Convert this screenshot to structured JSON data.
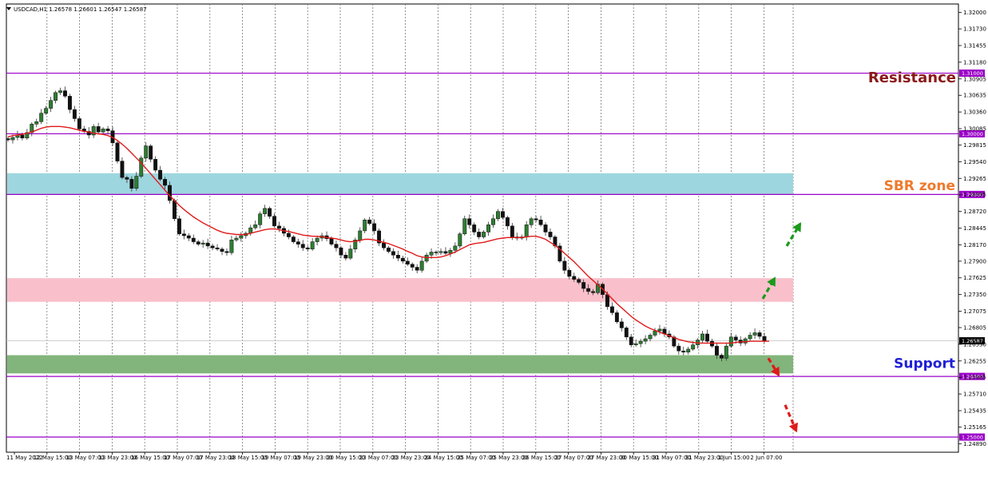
{
  "header": {
    "symbol_text": "USDCAD,H1  1.26578 1.26601 1.26547 1.26587"
  },
  "chart_data": {
    "type": "candlestick",
    "symbol": "USDCAD",
    "timeframe": "H1",
    "ohlc_header": {
      "open": 1.26578,
      "high": 1.26601,
      "low": 1.26547,
      "close": 1.26587
    },
    "current_price": "1.26587",
    "ylim": [
      1.2475,
      1.3214
    ],
    "y_ticks": [
      "1.32000",
      "1.31730",
      "1.31455",
      "1.31180",
      "1.30905",
      "1.30635",
      "1.30360",
      "1.30085",
      "1.29815",
      "1.29540",
      "1.29265",
      "1.28995",
      "1.28720",
      "1.28445",
      "1.28170",
      "1.27900",
      "1.27625",
      "1.27350",
      "1.27075",
      "1.26805",
      "1.26530",
      "1.26255",
      "1.25985",
      "1.25710",
      "1.25435",
      "1.25165",
      "1.24890"
    ],
    "x_ticks": [
      "11 May 2022",
      "12 May 15:00",
      "13 May 07:00",
      "13 May 23:00",
      "16 May 15:00",
      "17 May 07:00",
      "17 May 23:00",
      "18 May 15:00",
      "19 May 07:00",
      "19 May 23:00",
      "20 May 15:00",
      "23 May 07:00",
      "23 May 23:00",
      "24 May 15:00",
      "25 May 07:00",
      "25 May 23:00",
      "26 May 15:00",
      "27 May 07:00",
      "27 May 23:00",
      "30 May 15:00",
      "31 May 07:00",
      "31 May 23:00",
      "1 Jun 15:00",
      "2 Jun 07:00"
    ],
    "levels": [
      {
        "price": 1.31,
        "label": "1.31000",
        "color": "#9b00c8"
      },
      {
        "price": 1.3,
        "label": "1.30000",
        "color": "#9b00c8"
      },
      {
        "price": 1.29,
        "label": "1.29000",
        "color": "#9b00c8"
      },
      {
        "price": 1.26,
        "label": "1.26000",
        "color": "#9b00c8"
      },
      {
        "price": 1.25,
        "label": "1.25000",
        "color": "#9b00c8"
      }
    ],
    "zones": [
      {
        "name": "SBR zone band",
        "from": 1.29,
        "to": 1.2935,
        "color": "#9ed6df"
      },
      {
        "name": "pink band",
        "from": 1.2723,
        "to": 1.2762,
        "color": "#f9c0cb"
      },
      {
        "name": "support band",
        "from": 1.2605,
        "to": 1.2635,
        "color": "#82b57c"
      }
    ],
    "annotations": [
      {
        "text": "Resistance",
        "price": 1.3093,
        "color": "#8b1a1a"
      },
      {
        "text": "SBR zone",
        "price": 1.2915,
        "color": "#ee7a2c"
      },
      {
        "text": "Support",
        "price": 1.2622,
        "color": "#1f1fd6"
      }
    ],
    "series": [
      {
        "name": "",
        "kind": "close",
        "color": "#333333",
        "values": [
          1.299,
          1.2994,
          1.2998,
          1.2993,
          1.3002,
          1.3016,
          1.302,
          1.3034,
          1.3042,
          1.3055,
          1.3068,
          1.3071,
          1.3062,
          1.304,
          1.3025,
          1.3008,
          1.3004,
          1.2998,
          1.3012,
          1.3003,
          1.3008,
          1.3005,
          1.2985,
          1.2955,
          1.2928,
          1.2925,
          1.291,
          1.293,
          1.296,
          1.298,
          1.2958,
          1.294,
          1.2925,
          1.2915,
          1.289,
          1.286,
          1.2835,
          1.2832,
          1.2828,
          1.2822,
          1.2818,
          1.282,
          1.2815,
          1.2812,
          1.281,
          1.2806,
          1.2804,
          1.2825,
          1.2828,
          1.2832,
          1.2836,
          1.2845,
          1.285,
          1.2868,
          1.2877,
          1.2864,
          1.2848,
          1.2844,
          1.2836,
          1.283,
          1.2822,
          1.2818,
          1.2812,
          1.281,
          1.2822,
          1.2828,
          1.2832,
          1.2827,
          1.2818,
          1.2812,
          1.28,
          1.2795,
          1.281,
          1.2825,
          1.284,
          1.2858,
          1.2852,
          1.284,
          1.282,
          1.2812,
          1.2806,
          1.28,
          1.2795,
          1.279,
          1.2785,
          1.278,
          1.2775,
          1.279,
          1.28,
          1.2805,
          1.2804,
          1.2806,
          1.2803,
          1.2808,
          1.2815,
          1.2835,
          1.286,
          1.285,
          1.2838,
          1.283,
          1.2838,
          1.285,
          1.286,
          1.2872,
          1.2862,
          1.2848,
          1.283,
          1.2828,
          1.283,
          1.285,
          1.286,
          1.2858,
          1.285,
          1.2838,
          1.283,
          1.2815,
          1.279,
          1.2775,
          1.2765,
          1.276,
          1.2755,
          1.2745,
          1.274,
          1.2738,
          1.2752,
          1.2735,
          1.2715,
          1.2705,
          1.269,
          1.268,
          1.2665,
          1.2652,
          1.2654,
          1.2658,
          1.2662,
          1.2668,
          1.2675,
          1.2678,
          1.267,
          1.2665,
          1.265,
          1.2642,
          1.264,
          1.2645,
          1.2652,
          1.266,
          1.267,
          1.2658,
          1.265,
          1.2635,
          1.263,
          1.265,
          1.2665,
          1.266,
          1.2655,
          1.2662,
          1.2668,
          1.2672,
          1.2666,
          1.2659
        ]
      },
      {
        "name": "",
        "kind": "moving_average",
        "color": "#e01a1a",
        "values": [
          1.2995,
          1.2997,
          1.2998,
          1.2999,
          1.3001,
          1.3003,
          1.3006,
          1.3009,
          1.3011,
          1.3012,
          1.3012,
          1.3012,
          1.3011,
          1.301,
          1.3008,
          1.3006,
          1.3004,
          1.3003,
          1.3001,
          1.3,
          1.2999,
          1.2997,
          1.2994,
          1.2989,
          1.2983,
          1.2976,
          1.2968,
          1.296,
          1.2952,
          1.2943,
          1.2934,
          1.2925,
          1.2916,
          1.2907,
          1.2898,
          1.289,
          1.2882,
          1.2875,
          1.2869,
          1.2863,
          1.2858,
          1.2853,
          1.2849,
          1.2845,
          1.2841,
          1.2838,
          1.2836,
          1.2835,
          1.2834,
          1.2834,
          1.2834,
          1.2836,
          1.2838,
          1.284,
          1.2842,
          1.2843,
          1.2843,
          1.2842,
          1.284,
          1.2839,
          1.2837,
          1.2835,
          1.2833,
          1.2832,
          1.2831,
          1.2831,
          1.283,
          1.2829,
          1.2828,
          1.2827,
          1.2825,
          1.2823,
          1.2822,
          1.2823,
          1.2824,
          1.2826,
          1.2826,
          1.2825,
          1.2823,
          1.2821,
          1.2819,
          1.2816,
          1.2813,
          1.281,
          1.2806,
          1.2803,
          1.2799,
          1.2797,
          1.2796,
          1.2796,
          1.2796,
          1.2797,
          1.2799,
          1.2802,
          1.2805,
          1.2809,
          1.2813,
          1.2817,
          1.2819,
          1.282,
          1.2821,
          1.2823,
          1.2825,
          1.2827,
          1.2828,
          1.2829,
          1.2829,
          1.2829,
          1.2829,
          1.283,
          1.2831,
          1.2831,
          1.2829,
          1.2826,
          1.2821,
          1.2816,
          1.281,
          1.2803,
          1.2796,
          1.2789,
          1.2781,
          1.2773,
          1.2765,
          1.2758,
          1.2751,
          1.2744,
          1.2736,
          1.2728,
          1.272,
          1.2713,
          1.2706,
          1.2699,
          1.2693,
          1.2688,
          1.2683,
          1.2679,
          1.2676,
          1.2673,
          1.267,
          1.2667,
          1.2664,
          1.2661,
          1.2659,
          1.2657,
          1.2656,
          1.2655,
          1.2655,
          1.2655,
          1.2655,
          1.2655,
          1.2655,
          1.2655,
          1.2655,
          1.2656,
          1.2657,
          1.2657,
          1.2658,
          1.2658,
          1.2658,
          1.2658,
          1.2658
        ]
      }
    ],
    "projections": [
      {
        "label": "",
        "color": "#1a9a1a",
        "points": [
          [
            1.2728,
            1.2762
          ],
          [
            1.2815,
            1.2852
          ]
        ]
      },
      {
        "label": "",
        "color": "#e01a1a",
        "points": [
          [
            1.263,
            1.2602
          ],
          [
            1.2553,
            1.251
          ]
        ]
      }
    ]
  }
}
